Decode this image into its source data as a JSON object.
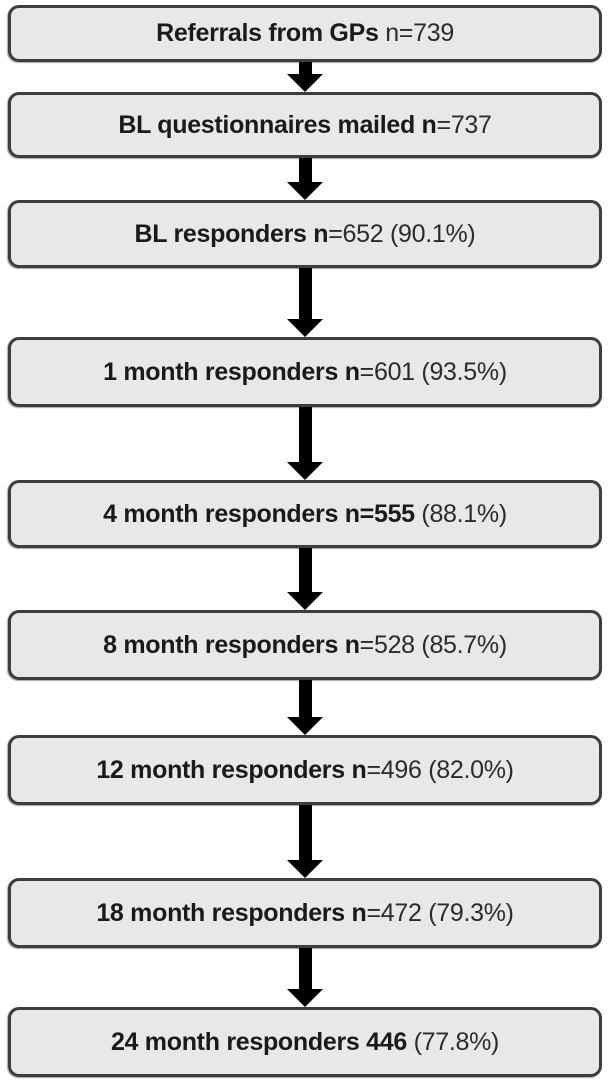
{
  "figure": {
    "type": "flowchart",
    "background_color": "#ffffff",
    "box_fill_color": "#e8e8e8",
    "box_border_color": "#3d3d3d",
    "arrow_color": "#000000",
    "boxes": [
      {
        "bold": "Referrals from GPs ",
        "regular": "n=739"
      },
      {
        "bold": "BL questionnaires mailed n",
        "regular": "=737"
      },
      {
        "bold": "BL responders n",
        "regular": "=652 (90.1%)"
      },
      {
        "bold": "1 month responders n",
        "regular": "=601 (93.5%)"
      },
      {
        "bold": "4 month responders n=555 ",
        "regular": "(88.1%)"
      },
      {
        "bold": "8 month responders n",
        "regular": "=528 (85.7%)"
      },
      {
        "bold": "12 month responders n",
        "regular": "=496 (82.0%)"
      },
      {
        "bold": "18 month responders n",
        "regular": "=472 (79.3%)"
      },
      {
        "bold": "24 month responders 446 ",
        "regular": "(77.8%)"
      }
    ]
  }
}
